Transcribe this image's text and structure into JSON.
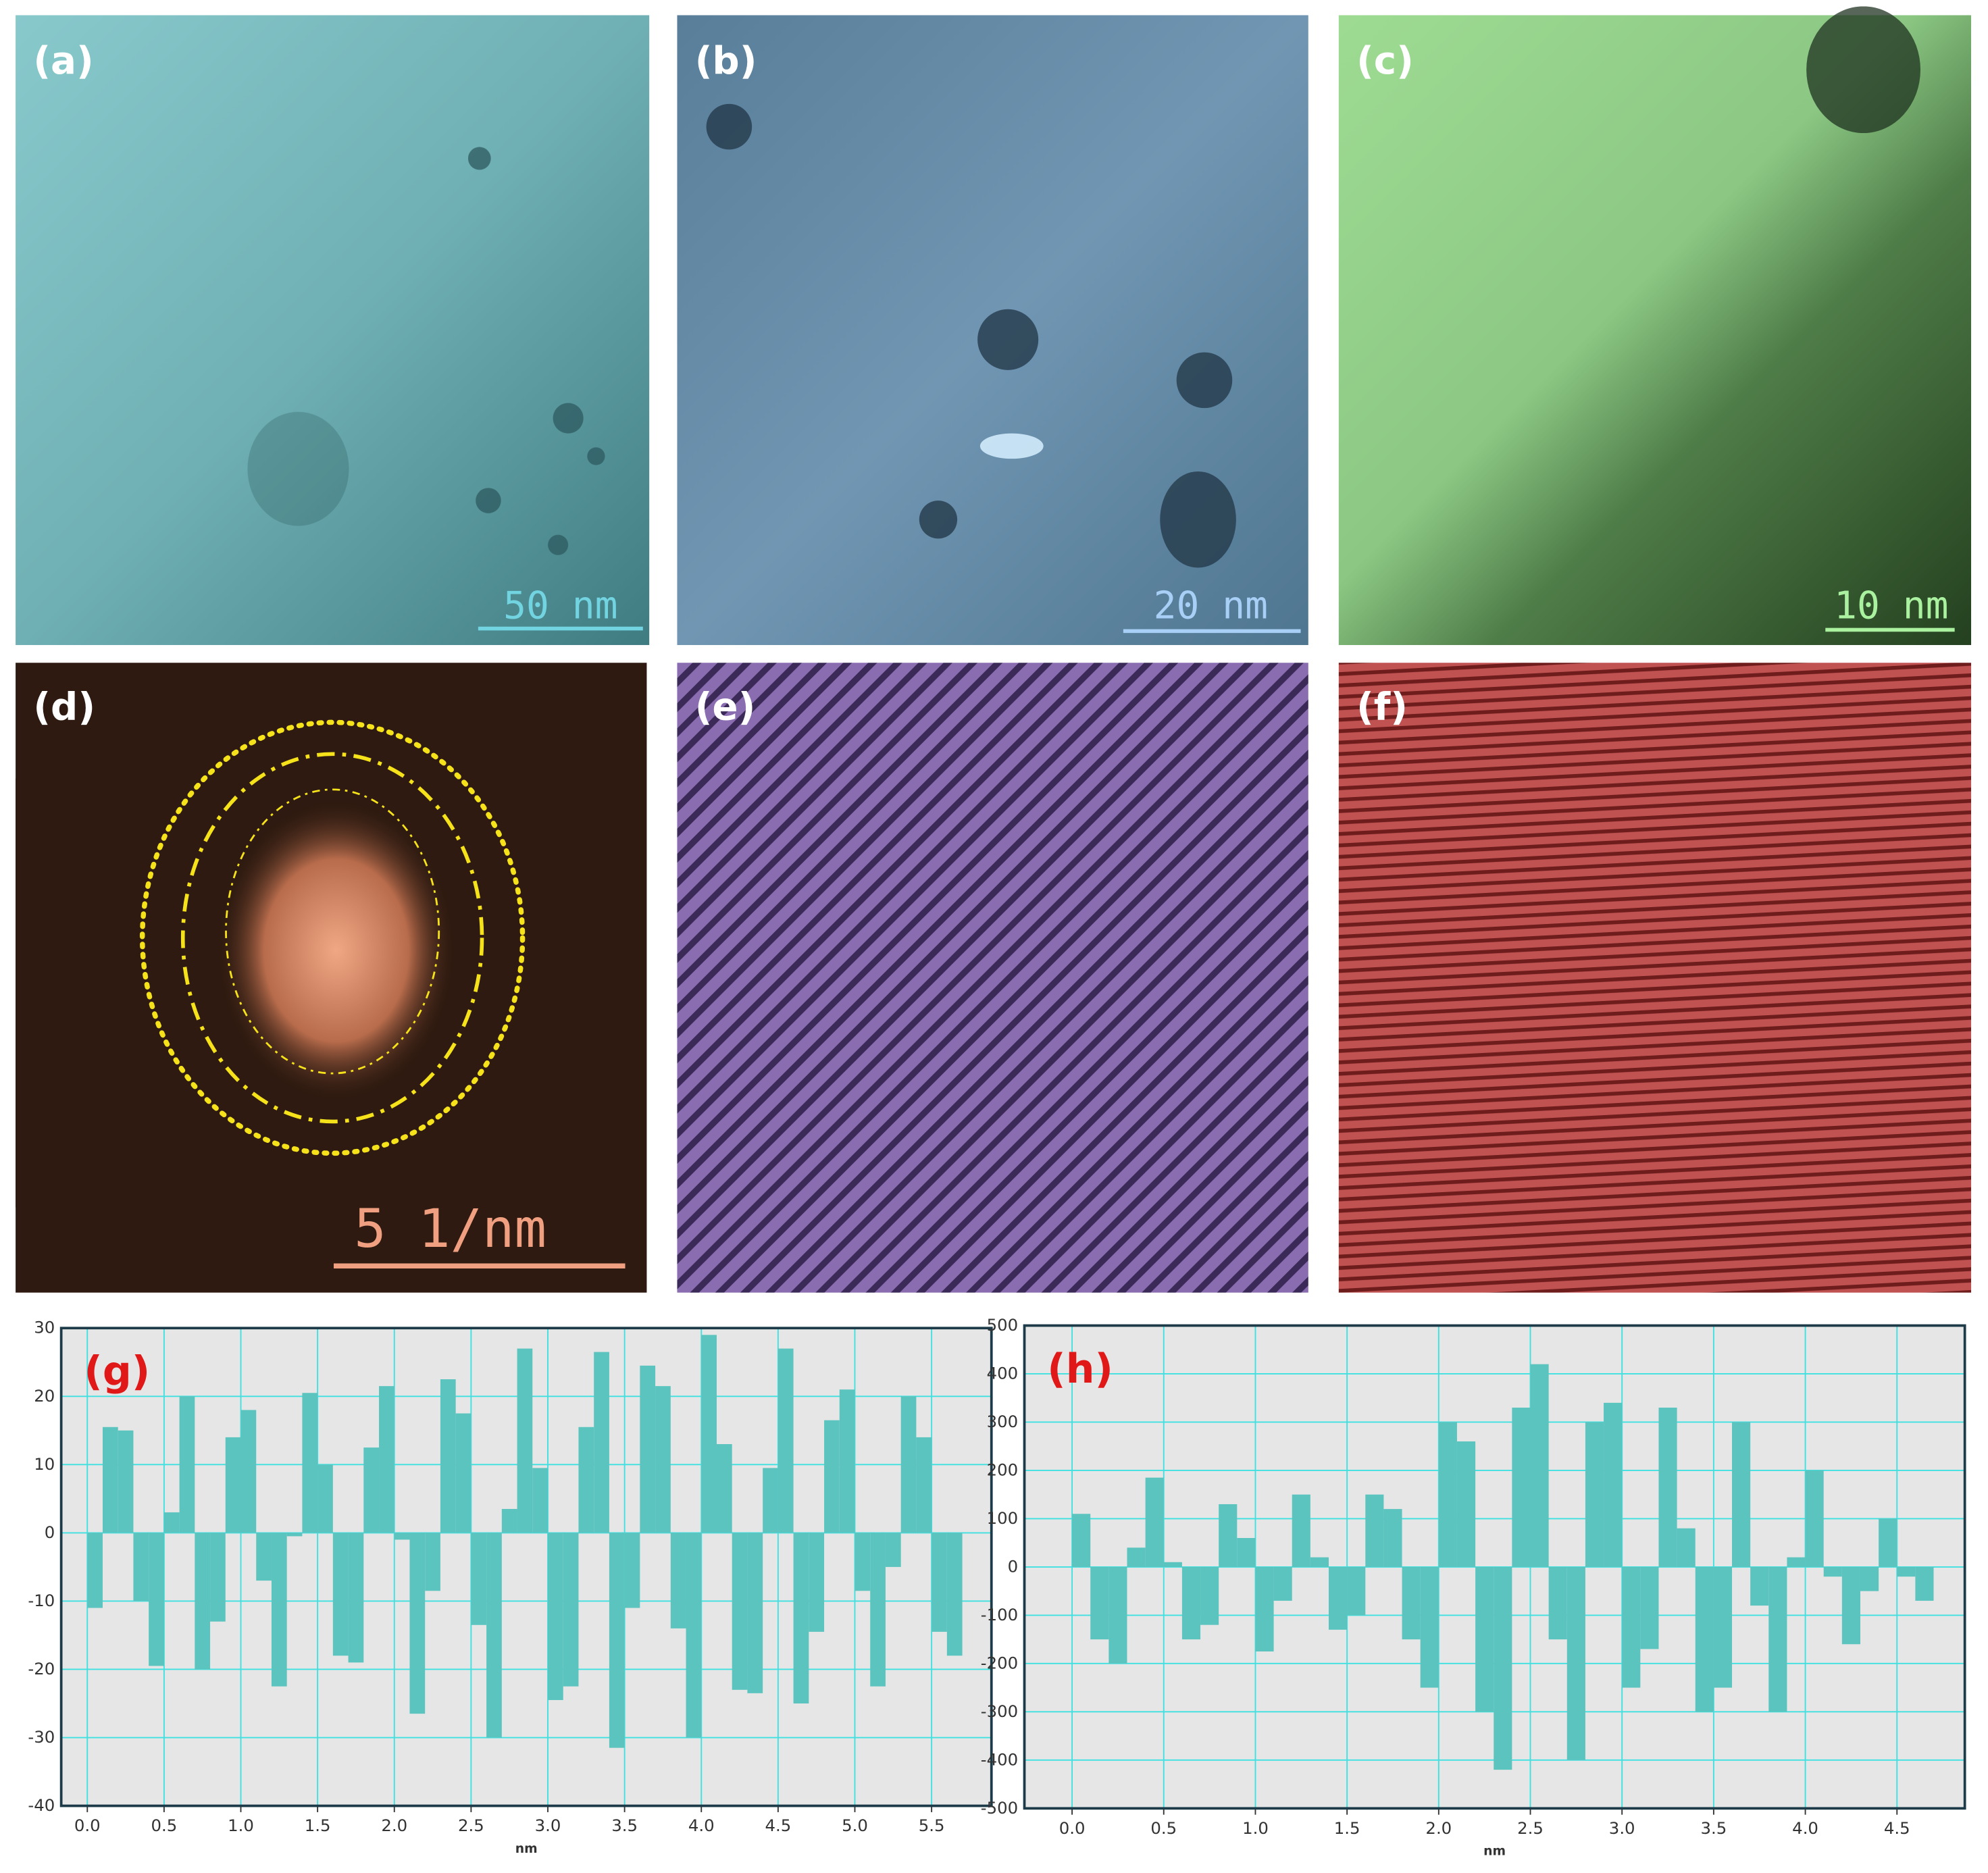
{
  "panels": [
    {
      "label": "(a)",
      "scale_bar": "50 nm"
    },
    {
      "label": "(b)",
      "scale_bar": "20 nm"
    },
    {
      "label": "(c)",
      "scale_bar": "10 nm"
    },
    {
      "label": "(d)",
      "scale_bar": "5 1/nm"
    },
    {
      "label": "(e)"
    },
    {
      "label": "(f)"
    }
  ],
  "chart_data": [
    {
      "type": "bar",
      "title": "(g)",
      "x_label": "nm",
      "color": "#5cc4bf",
      "grid": true,
      "x": [
        0.05,
        0.15,
        0.25,
        0.35,
        0.45,
        0.55,
        0.65,
        0.75,
        0.85,
        0.95,
        1.05,
        1.15,
        1.25,
        1.35,
        1.45,
        1.55,
        1.65,
        1.75,
        1.85,
        1.95,
        2.05,
        2.15,
        2.25,
        2.35,
        2.45,
        2.55,
        2.65,
        2.75,
        2.85,
        2.95,
        3.05,
        3.15,
        3.25,
        3.35,
        3.45,
        3.55,
        3.65,
        3.75,
        3.85,
        3.95,
        4.05,
        4.15,
        4.25,
        4.35,
        4.45,
        4.55,
        4.65,
        4.75,
        4.85,
        4.95,
        5.05,
        5.15,
        5.25,
        5.35,
        5.45,
        5.55,
        5.65
      ],
      "values": [
        -11,
        15.5,
        15,
        -10,
        -19.5,
        3,
        20,
        -20,
        -13,
        14,
        18,
        -7,
        -22.5,
        -0.5,
        20.5,
        10,
        -18,
        -19,
        12.5,
        21.5,
        -1,
        -26.5,
        -8.5,
        22.5,
        17.5,
        -13.5,
        -30,
        3.5,
        27,
        9.5,
        -24.5,
        -22.5,
        15.5,
        26.5,
        -31.5,
        -11,
        24.5,
        21.5,
        -14,
        -30,
        29,
        13,
        -23,
        -23.5,
        9.5,
        27,
        -25,
        -14.5,
        16.5,
        21,
        -8.5,
        -22.5,
        -5,
        20,
        14,
        -14.5,
        -18
      ],
      "xlim": [
        -0.17,
        5.89
      ],
      "ylim": [
        -40,
        30
      ],
      "xticks": [
        {
          "value": 0,
          "label": "0.0"
        },
        0.5,
        {
          "value": 1,
          "label": "1.0"
        },
        1.5,
        {
          "value": 2,
          "label": "2.0"
        },
        2.5,
        {
          "value": 3,
          "label": "3.0"
        },
        3.5,
        {
          "value": 4,
          "label": "4.0"
        },
        4.5,
        {
          "value": 5,
          "label": "5.0"
        },
        5.5
      ],
      "yticks": [
        30,
        20,
        10,
        0,
        -10,
        -20,
        -30,
        -40
      ]
    },
    {
      "type": "bar",
      "title": "(h)",
      "x_label": "nm",
      "color": "#5cc4bf",
      "grid": true,
      "x": [
        0.05,
        0.15,
        0.25,
        0.35,
        0.45,
        0.55,
        0.65,
        0.75,
        0.85,
        0.95,
        1.05,
        1.15,
        1.25,
        1.35,
        1.45,
        1.55,
        1.65,
        1.75,
        1.85,
        1.95,
        2.05,
        2.15,
        2.25,
        2.35,
        2.45,
        2.55,
        2.65,
        2.75,
        2.85,
        2.95,
        3.05,
        3.15,
        3.25,
        3.35,
        3.45,
        3.55,
        3.65,
        3.75,
        3.85,
        3.95,
        4.05,
        4.15,
        4.25,
        4.35,
        4.45,
        4.55,
        4.65
      ],
      "values": [
        110,
        -150,
        -200,
        40,
        185,
        10,
        -150,
        -120,
        130,
        60,
        -175,
        -70,
        150,
        20,
        -130,
        -100,
        150,
        120,
        -150,
        -250,
        300,
        260,
        -300,
        -420,
        330,
        420,
        -150,
        -400,
        300,
        340,
        -250,
        -170,
        330,
        80,
        -300,
        -250,
        300,
        -80,
        -300,
        20,
        200,
        -20,
        -160,
        -50,
        100,
        -20,
        -70
      ],
      "xlim": [
        -0.26,
        4.87
      ],
      "ylim": [
        -500,
        500
      ],
      "xticks": [
        {
          "value": 0,
          "label": "0.0"
        },
        0.5,
        {
          "value": 1,
          "label": "1.0"
        },
        1.5,
        {
          "value": 2,
          "label": "2.0"
        },
        2.5,
        {
          "value": 3,
          "label": "3.0"
        },
        3.5,
        {
          "value": 4,
          "label": "4.0"
        },
        4.5
      ],
      "yticks": [
        500,
        400,
        300,
        200,
        100,
        0,
        -100,
        -200,
        -300,
        -400,
        -500
      ]
    }
  ]
}
